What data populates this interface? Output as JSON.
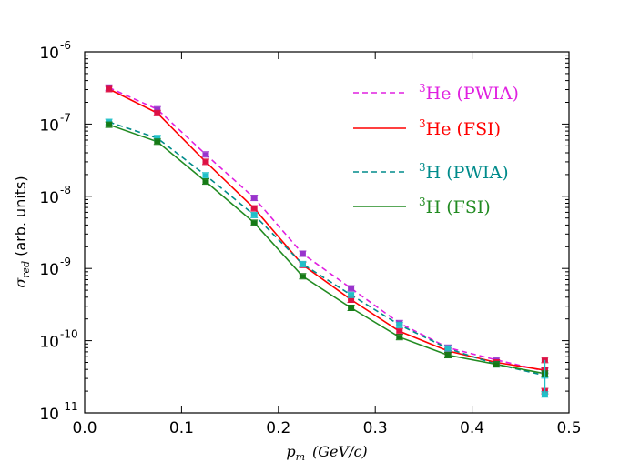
{
  "chart_data": {
    "type": "line",
    "title": "",
    "xlabel": {
      "var": "p",
      "sub": "m",
      "units": "(GeV/c)"
    },
    "ylabel": {
      "var": "σ",
      "sub": "red",
      "units": "(arb. units)"
    },
    "xlim": [
      0.0,
      0.5
    ],
    "ylim_log10": [
      -11,
      -6
    ],
    "yscale": "log",
    "grid": false,
    "legend_position": "top-right",
    "x_ticks": [
      "0.0",
      "0.1",
      "0.2",
      "0.3",
      "0.4",
      "0.5"
    ],
    "y_ticks": [
      {
        "base": "10",
        "exp": "-11",
        "value": 1e-11
      },
      {
        "base": "10",
        "exp": "-10",
        "value": 1e-10
      },
      {
        "base": "10",
        "exp": "-9",
        "value": 1e-09
      },
      {
        "base": "10",
        "exp": "-8",
        "value": 1e-08
      },
      {
        "base": "10",
        "exp": "-7",
        "value": 1e-07
      },
      {
        "base": "10",
        "exp": "-6",
        "value": 1e-06
      }
    ],
    "x": [
      0.025,
      0.075,
      0.125,
      0.175,
      0.225,
      0.275,
      0.325,
      0.375,
      0.425,
      0.475
    ],
    "series": [
      {
        "id": "he-pwia",
        "label_sup": "3",
        "label": "He (PWIA)",
        "style": "dashed",
        "color": "#e020e0",
        "marker_color": "#9933cc",
        "values": [
          3.2e-07,
          1.6e-07,
          3.8e-08,
          9.5e-09,
          1.6e-09,
          5.3e-10,
          1.75e-10,
          8e-11,
          5.4e-11,
          3.8e-11
        ]
      },
      {
        "id": "he-fsi",
        "label_sup": "3",
        "label": "He (FSI)",
        "style": "solid",
        "color": "#ff0000",
        "marker_color": "#dd1144",
        "values": [
          3.05e-07,
          1.42e-07,
          3e-08,
          6.8e-09,
          1.12e-09,
          3.7e-10,
          1.35e-10,
          7.2e-11,
          5e-11,
          3.9e-11
        ]
      },
      {
        "id": "h-pwia",
        "label_sup": "3",
        "label": "H (PWIA)",
        "style": "dashed",
        "color": "#008b8b",
        "marker_color": "#20c0c8",
        "values": [
          1.07e-07,
          6.4e-08,
          1.95e-08,
          5.5e-09,
          1.15e-09,
          4.3e-10,
          1.65e-10,
          7.8e-11,
          4.7e-11,
          3.3e-11
        ]
      },
      {
        "id": "h-fsi",
        "label_sup": "3",
        "label": "H (FSI)",
        "style": "solid",
        "color": "#228b22",
        "marker_color": "#157a15",
        "values": [
          9.8e-08,
          5.7e-08,
          1.6e-08,
          4.3e-09,
          7.8e-10,
          2.85e-10,
          1.12e-10,
          6.3e-11,
          4.7e-11,
          3.5e-11
        ]
      }
    ],
    "last_bin_extra_markers": [
      {
        "value": 5.4e-11,
        "color": "#dd1144"
      },
      {
        "value": 2e-11,
        "color": "#dd1144"
      },
      {
        "value": 1.8e-11,
        "color": "#20c0c8"
      }
    ]
  }
}
